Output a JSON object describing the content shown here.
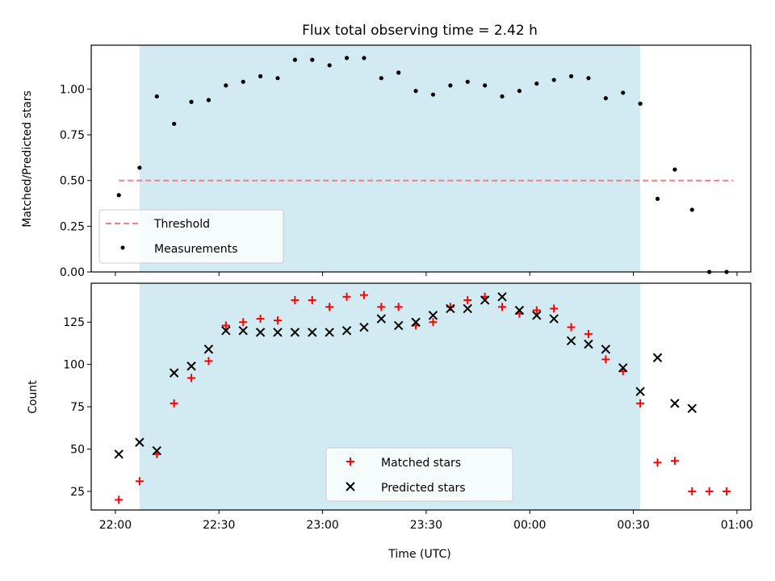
{
  "title": "Flux total observing time = 2.42 h",
  "colors": {
    "shade": "#add8e6",
    "threshold": "#f08080",
    "measurement": "#000000",
    "matched": "#ff0000",
    "predicted": "#000000"
  },
  "chart_data": [
    {
      "type": "scatter",
      "ylabel": "Matched/Predicted stars",
      "ylim": [
        0,
        1.24
      ],
      "yticks": [
        0.0,
        0.25,
        0.5,
        0.75,
        1.0
      ],
      "ytick_labels": [
        "0.00",
        "0.25",
        "0.50",
        "0.75",
        "1.00"
      ],
      "shaded_span": [
        "22:07",
        "00:32"
      ],
      "threshold": {
        "value": 0.5,
        "x_range": [
          "22:01",
          "00:59"
        ]
      },
      "legend": {
        "entries": [
          "Threshold",
          "Measurements"
        ],
        "placement": "lower-left"
      },
      "series": [
        {
          "name": "Measurements",
          "x": [
            "22:01",
            "22:07",
            "22:12",
            "22:17",
            "22:22",
            "22:27",
            "22:32",
            "22:37",
            "22:42",
            "22:47",
            "22:52",
            "22:57",
            "23:02",
            "23:07",
            "23:12",
            "23:17",
            "23:22",
            "23:27",
            "23:32",
            "23:37",
            "23:42",
            "23:47",
            "23:52",
            "23:57",
            "00:02",
            "00:07",
            "00:12",
            "00:17",
            "00:22",
            "00:27",
            "00:32",
            "00:37",
            "00:42",
            "00:47",
            "00:52",
            "00:57"
          ],
          "y": [
            0.42,
            0.57,
            0.96,
            0.81,
            0.93,
            0.94,
            1.02,
            1.04,
            1.07,
            1.06,
            1.16,
            1.16,
            1.13,
            1.17,
            1.17,
            1.06,
            1.09,
            0.99,
            0.97,
            1.02,
            1.04,
            1.02,
            0.96,
            0.99,
            1.03,
            1.05,
            1.07,
            1.06,
            0.95,
            0.98,
            0.92,
            0.4,
            0.56,
            0.34,
            0.0,
            0.0
          ]
        }
      ]
    },
    {
      "type": "scatter",
      "xlabel": "Time (UTC)",
      "ylabel": "Count",
      "ylim": [
        14,
        148
      ],
      "yticks": [
        25,
        50,
        75,
        100,
        125
      ],
      "ytick_labels": [
        "25",
        "50",
        "75",
        "100",
        "125"
      ],
      "xlim": [
        "21:53",
        "01:04"
      ],
      "xticks": [
        "22:00",
        "22:30",
        "23:00",
        "23:30",
        "00:00",
        "00:30",
        "01:00"
      ],
      "shaded_span": [
        "22:07",
        "00:32"
      ],
      "legend": {
        "entries": [
          "Matched stars",
          "Predicted stars"
        ],
        "placement": "lower-center"
      },
      "series": [
        {
          "name": "Matched stars",
          "x": [
            "22:01",
            "22:07",
            "22:12",
            "22:17",
            "22:22",
            "22:27",
            "22:32",
            "22:37",
            "22:42",
            "22:47",
            "22:52",
            "22:57",
            "23:02",
            "23:07",
            "23:12",
            "23:17",
            "23:22",
            "23:27",
            "23:32",
            "23:37",
            "23:42",
            "23:47",
            "23:52",
            "23:57",
            "00:02",
            "00:07",
            "00:12",
            "00:17",
            "00:22",
            "00:27",
            "00:32",
            "00:37",
            "00:42",
            "00:47",
            "00:52",
            "00:57"
          ],
          "y": [
            20,
            31,
            47,
            77,
            92,
            102,
            123,
            125,
            127,
            126,
            138,
            138,
            134,
            140,
            141,
            134,
            134,
            123,
            125,
            134,
            138,
            140,
            134,
            130,
            132,
            133,
            122,
            118,
            103,
            96,
            77,
            42,
            43,
            25,
            25,
            25
          ]
        },
        {
          "name": "Predicted stars",
          "x": [
            "22:01",
            "22:07",
            "22:12",
            "22:17",
            "22:22",
            "22:27",
            "22:32",
            "22:37",
            "22:42",
            "22:47",
            "22:52",
            "22:57",
            "23:02",
            "23:07",
            "23:12",
            "23:17",
            "23:22",
            "23:27",
            "23:32",
            "23:37",
            "23:42",
            "23:47",
            "23:52",
            "23:57",
            "00:02",
            "00:07",
            "00:12",
            "00:17",
            "00:22",
            "00:27",
            "00:32",
            "00:37",
            "00:42",
            "00:47"
          ],
          "y": [
            47,
            54,
            49,
            95,
            99,
            109,
            120,
            120,
            119,
            119,
            119,
            119,
            119,
            120,
            122,
            127,
            123,
            125,
            129,
            133,
            133,
            138,
            140,
            132,
            129,
            127,
            114,
            112,
            109,
            98,
            84,
            104,
            77,
            74
          ]
        }
      ]
    }
  ]
}
